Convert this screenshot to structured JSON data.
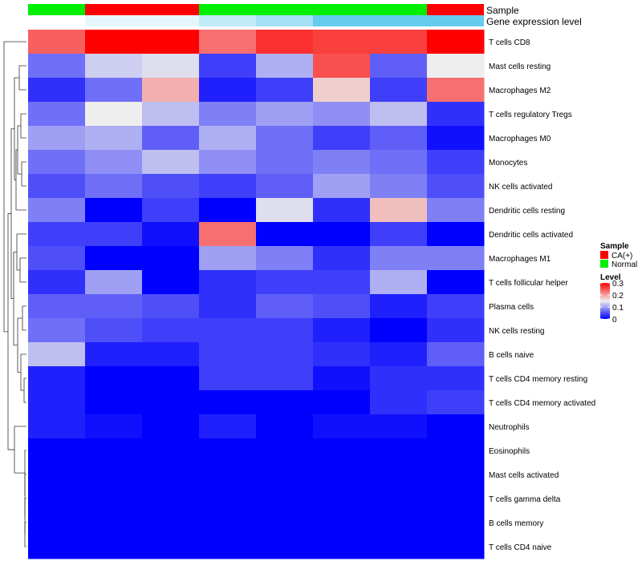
{
  "chart_data": {
    "type": "heatmap",
    "title": "",
    "annotation_labels": {
      "sample": "Sample",
      "expression": "Gene expression level"
    },
    "columns": [
      {
        "sample": "Normal",
        "expression": 0.0
      },
      {
        "sample": "CA(+)",
        "expression": 0.05
      },
      {
        "sample": "CA(+)",
        "expression": 0.05
      },
      {
        "sample": "Normal",
        "expression": 0.12
      },
      {
        "sample": "Normal",
        "expression": 0.18
      },
      {
        "sample": "Normal",
        "expression": 0.3
      },
      {
        "sample": "Normal",
        "expression": 0.3
      },
      {
        "sample": "CA(+)",
        "expression": 0.3
      }
    ],
    "rows": [
      "T cells CD8",
      "Mast cells resting",
      "Macrophages M2",
      "T cells regulatory  Tregs",
      "Macrophages M0",
      "Monocytes",
      "NK cells activated",
      "Dendritic cells resting",
      "Dendritic cells activated",
      "Macrophages M1",
      "T cells follicular helper",
      "Plasma cells",
      "NK cells resting",
      "B cells naive",
      "T cells CD4 memory resting",
      "T cells CD4 memory activated",
      "Neutrophils",
      "Eosinophils",
      "Mast cells activated",
      "T cells gamma delta",
      "B cells memory",
      "T cells CD4 naive"
    ],
    "values": [
      [
        0.24,
        0.3,
        0.3,
        0.23,
        0.27,
        0.26,
        0.26,
        0.3
      ],
      [
        0.07,
        0.13,
        0.14,
        0.04,
        0.11,
        0.25,
        0.06,
        0.15
      ],
      [
        0.03,
        0.07,
        0.19,
        0.02,
        0.04,
        0.17,
        0.04,
        0.23
      ],
      [
        0.07,
        0.15,
        0.12,
        0.08,
        0.1,
        0.09,
        0.12,
        0.03
      ],
      [
        0.1,
        0.11,
        0.06,
        0.11,
        0.07,
        0.04,
        0.06,
        0.01
      ],
      [
        0.07,
        0.09,
        0.12,
        0.09,
        0.07,
        0.08,
        0.07,
        0.04
      ],
      [
        0.05,
        0.07,
        0.05,
        0.04,
        0.06,
        0.1,
        0.08,
        0.05
      ],
      [
        0.08,
        0.0,
        0.04,
        0.0,
        0.14,
        0.03,
        0.18,
        0.08
      ],
      [
        0.04,
        0.04,
        0.01,
        0.23,
        0.0,
        0.0,
        0.04,
        0.0
      ],
      [
        0.05,
        0.0,
        0.0,
        0.1,
        0.08,
        0.03,
        0.08,
        0.08
      ],
      [
        0.03,
        0.1,
        0.0,
        0.03,
        0.04,
        0.04,
        0.11,
        0.0
      ],
      [
        0.06,
        0.06,
        0.05,
        0.03,
        0.06,
        0.05,
        0.02,
        0.04
      ],
      [
        0.07,
        0.05,
        0.04,
        0.04,
        0.04,
        0.02,
        0.0,
        0.03
      ],
      [
        0.12,
        0.02,
        0.02,
        0.04,
        0.04,
        0.03,
        0.02,
        0.06
      ],
      [
        0.02,
        0.0,
        0.0,
        0.04,
        0.04,
        0.01,
        0.03,
        0.03
      ],
      [
        0.02,
        0.0,
        0.0,
        0.0,
        0.0,
        0.0,
        0.03,
        0.04
      ],
      [
        0.02,
        0.01,
        0.0,
        0.02,
        0.0,
        0.01,
        0.01,
        0.0
      ],
      [
        0.0,
        0.0,
        0.0,
        0.0,
        0.0,
        0.0,
        0.0,
        0.0
      ],
      [
        0.0,
        0.0,
        0.0,
        0.0,
        0.0,
        0.0,
        0.0,
        0.0
      ],
      [
        0.0,
        0.0,
        0.0,
        0.0,
        0.0,
        0.0,
        0.0,
        0.0
      ],
      [
        0.0,
        0.0,
        0.0,
        0.0,
        0.0,
        0.0,
        0.0,
        0.0
      ],
      [
        0.0,
        0.0,
        0.0,
        0.0,
        0.0,
        0.0,
        0.0,
        0.0
      ]
    ],
    "color_scale": {
      "min": 0,
      "mid": 0.15,
      "max": 0.3,
      "low": "#0000ff",
      "mid_color": "#eeeeee",
      "high": "#ff0000"
    },
    "sample_colors": {
      "CA(+)": "#ff0000",
      "Normal": "#00ee00"
    },
    "expression_colors": {
      "low": "#ffffff",
      "high": "#66ccee"
    },
    "legend": {
      "placement": "right",
      "sample_title": "Sample",
      "sample_items": [
        "CA(+)",
        "Normal"
      ],
      "level_title": "Level",
      "level_ticks": [
        "0.3",
        "0.2",
        "0.1",
        "0"
      ],
      "level_tick_values": [
        0.3,
        0.2,
        0.1,
        0
      ]
    }
  }
}
